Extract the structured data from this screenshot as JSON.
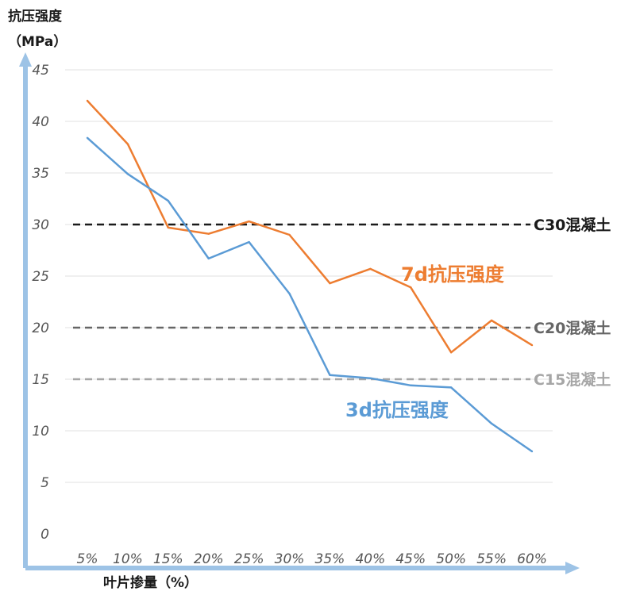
{
  "chart_data": {
    "type": "line",
    "ylabel": [
      "抗压强度",
      "（MPa）"
    ],
    "xlabel": "叶片掺量（%）",
    "categories": [
      "5%",
      "10%",
      "15%",
      "20%",
      "25%",
      "30%",
      "35%",
      "40%",
      "45%",
      "50%",
      "55%",
      "60%"
    ],
    "ylim": [
      0,
      45
    ],
    "yticks": [
      0,
      5,
      10,
      15,
      20,
      25,
      30,
      35,
      40,
      45
    ],
    "grid": true,
    "series": [
      {
        "name": "7d抗压强度",
        "color": "#ED7D31",
        "values": [
          42.0,
          37.8,
          29.7,
          29.1,
          30.3,
          29.0,
          24.3,
          25.7,
          23.9,
          17.6,
          20.7,
          18.3
        ]
      },
      {
        "name": "3d抗压强度",
        "color": "#5B9BD5",
        "values": [
          38.4,
          34.9,
          32.3,
          26.7,
          28.3,
          23.3,
          15.4,
          15.1,
          14.4,
          14.2,
          10.7,
          8.0
        ]
      }
    ],
    "reference_lines": [
      {
        "label": "C30混凝土",
        "value": 30,
        "color": "#1a1a1a"
      },
      {
        "label": "C20混凝土",
        "value": 20,
        "color": "#666666"
      },
      {
        "label": "C15混凝土",
        "value": 15,
        "color": "#a6a6a6"
      }
    ],
    "axis_color": "#9DC3E6"
  }
}
